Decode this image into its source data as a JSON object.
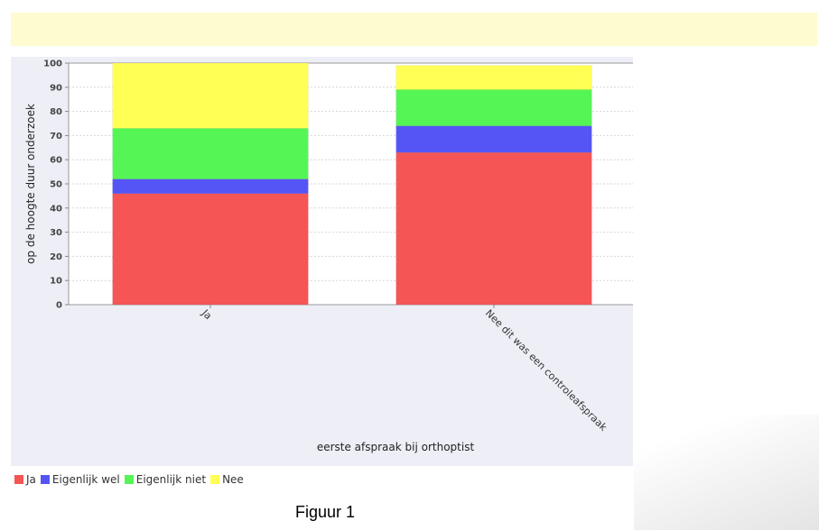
{
  "caption": "Figuur 1",
  "chart_data": {
    "type": "bar",
    "stacked": true,
    "categories": [
      "Ja",
      "Nee dit was een controleafspraak"
    ],
    "series": [
      {
        "name": "Ja",
        "color": "#f55555",
        "values": [
          46,
          63
        ]
      },
      {
        "name": "Eigenlijk wel",
        "color": "#5555f5",
        "values": [
          6,
          11
        ]
      },
      {
        "name": "Eigenlijk niet",
        "color": "#55f555",
        "values": [
          21,
          15
        ]
      },
      {
        "name": "Nee",
        "color": "#ffff55",
        "values": [
          27,
          10
        ]
      }
    ],
    "xlabel": "eerste afspraak bij orthoptist",
    "ylabel": "op de hoogte duur onderzoek",
    "ylim": [
      0,
      100
    ],
    "yticks": [
      0,
      10,
      20,
      30,
      40,
      50,
      60,
      70,
      80,
      90,
      100
    ],
    "grid": true,
    "legend": "bottom-left"
  }
}
